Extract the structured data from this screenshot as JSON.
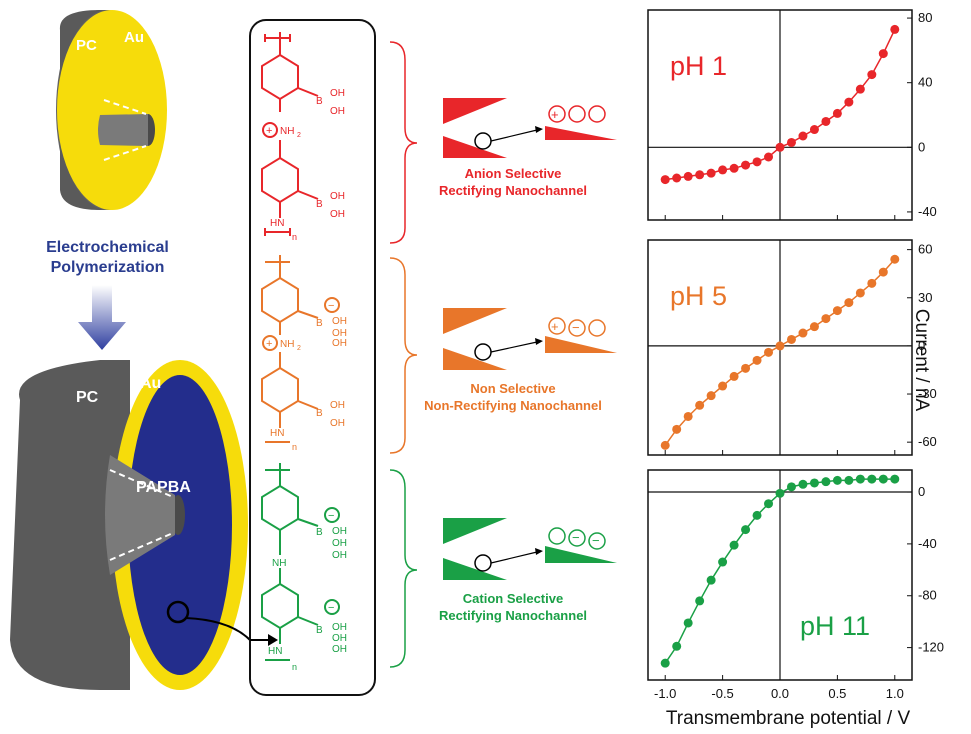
{
  "left": {
    "top_disk": {
      "pc_label": "PC",
      "au_label": "Au"
    },
    "process_label_1": "Electrochemical",
    "process_label_2": "Polymerization",
    "bottom_disk": {
      "pc_label": "PC",
      "au_label": "Au",
      "core_label": "PAPBA"
    }
  },
  "colors": {
    "red": "#e8262a",
    "orange": "#e8762a",
    "green": "#1aa046",
    "blue": "#2a3d8f",
    "gold": "#f5d90a",
    "gray": "#606060",
    "navy": "#232d8c"
  },
  "structures": {
    "red": {
      "nh2": "NH",
      "nh2_sub": "2",
      "boron": "B",
      "oh": "OH",
      "hn": "HN",
      "n": "n"
    },
    "orange": {
      "nh2": "NH",
      "nh2_sub": "2",
      "boron": "B",
      "oh": "OH",
      "hn": "HN",
      "n": "n"
    },
    "green": {
      "nh": "NH",
      "boron": "B",
      "oh": "OH",
      "hn": "HN",
      "n": "n"
    }
  },
  "annotations": [
    {
      "line1": "Anion Selective",
      "line2": "Rectifying Nanochannel",
      "color": "#e8262a"
    },
    {
      "line1": "Non Selective",
      "line2": "Non-Rectifying Nanochannel",
      "color": "#e8762a"
    },
    {
      "line1": "Cation Selective",
      "line2": "Rectifying Nanochannel",
      "color": "#1aa046"
    }
  ],
  "chart_data": [
    {
      "type": "scatter",
      "label": "pH 1",
      "color": "#e8262a",
      "x": [
        -1.0,
        -0.9,
        -0.8,
        -0.7,
        -0.6,
        -0.5,
        -0.4,
        -0.3,
        -0.2,
        -0.1,
        0.0,
        0.1,
        0.2,
        0.3,
        0.4,
        0.5,
        0.6,
        0.7,
        0.8,
        0.9,
        1.0
      ],
      "y": [
        -20,
        -19,
        -18,
        -17,
        -16,
        -14,
        -13,
        -11,
        -9,
        -6,
        0,
        3,
        7,
        11,
        16,
        21,
        28,
        36,
        45,
        58,
        73
      ],
      "ylim": [
        -45,
        85
      ],
      "yticks": [
        -40,
        0,
        40,
        80
      ]
    },
    {
      "type": "scatter",
      "label": "pH 5",
      "color": "#e8762a",
      "x": [
        -1.0,
        -0.9,
        -0.8,
        -0.7,
        -0.6,
        -0.5,
        -0.4,
        -0.3,
        -0.2,
        -0.1,
        0.0,
        0.1,
        0.2,
        0.3,
        0.4,
        0.5,
        0.6,
        0.7,
        0.8,
        0.9,
        1.0
      ],
      "y": [
        -62,
        -52,
        -44,
        -37,
        -31,
        -25,
        -19,
        -14,
        -9,
        -4,
        0,
        4,
        8,
        12,
        17,
        22,
        27,
        33,
        39,
        46,
        54
      ],
      "ylim": [
        -68,
        66
      ],
      "yticks": [
        -60,
        -30,
        0,
        30,
        60
      ]
    },
    {
      "type": "scatter",
      "label": "pH 11",
      "color": "#1aa046",
      "x": [
        -1.0,
        -0.9,
        -0.8,
        -0.7,
        -0.6,
        -0.5,
        -0.4,
        -0.3,
        -0.2,
        -0.1,
        0.0,
        0.1,
        0.2,
        0.3,
        0.4,
        0.5,
        0.6,
        0.7,
        0.8,
        0.9,
        1.0
      ],
      "y": [
        -132,
        -119,
        -101,
        -84,
        -68,
        -54,
        -41,
        -29,
        -18,
        -9,
        -1,
        4,
        6,
        7,
        8,
        9,
        9,
        10,
        10,
        10,
        10
      ],
      "ylim": [
        -145,
        17
      ],
      "yticks": [
        -120,
        -80,
        -40,
        0
      ]
    }
  ],
  "axes": {
    "xticks": [
      "-1.0",
      "-0.5",
      "0.0",
      "0.5",
      "1.0"
    ],
    "xlabel": "Transmembrane potential / V",
    "ylabel": "Current / nA"
  }
}
